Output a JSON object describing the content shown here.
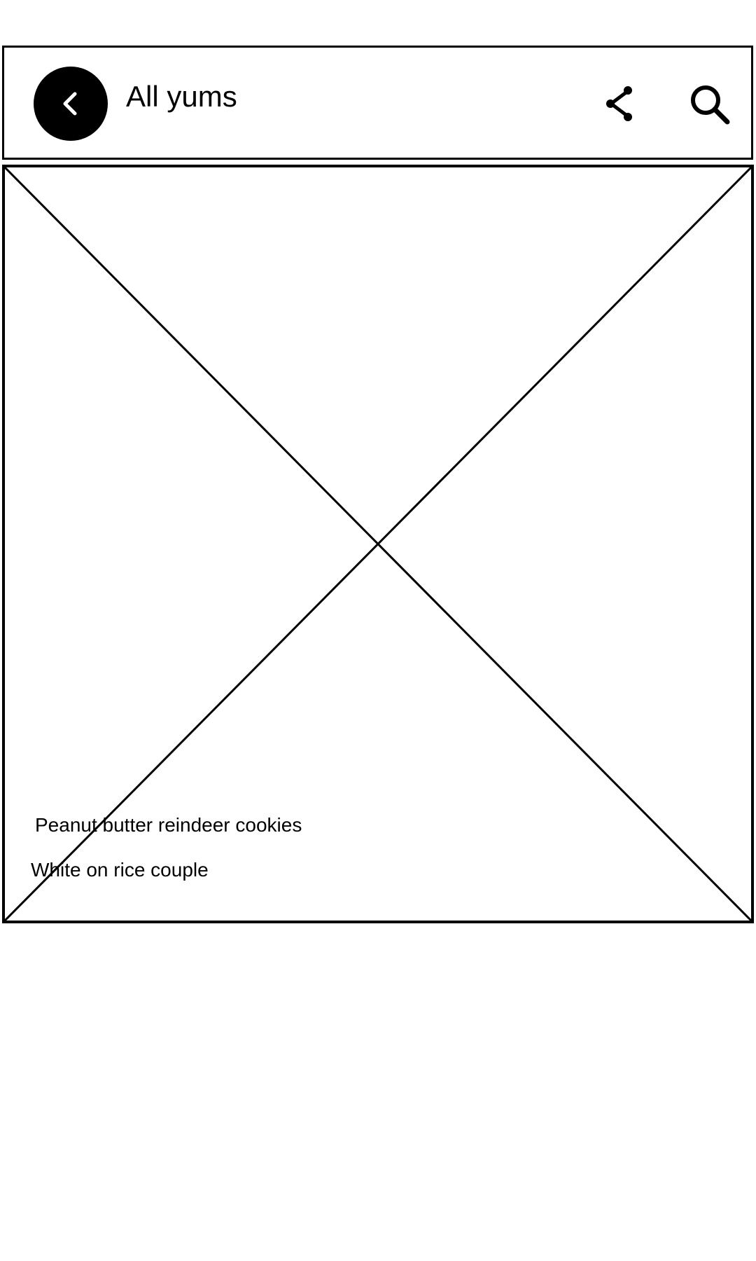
{
  "header": {
    "title": "All yums",
    "back_icon": "chevron-left-icon",
    "share_icon": "share-icon",
    "search_icon": "search-icon"
  },
  "hero": {
    "image_placeholder": "image-placeholder",
    "recipe_title": "Peanut butter reindeer cookies",
    "recipe_author": "White on rice couple"
  },
  "colors": {
    "foreground": "#000000",
    "background": "#ffffff"
  }
}
